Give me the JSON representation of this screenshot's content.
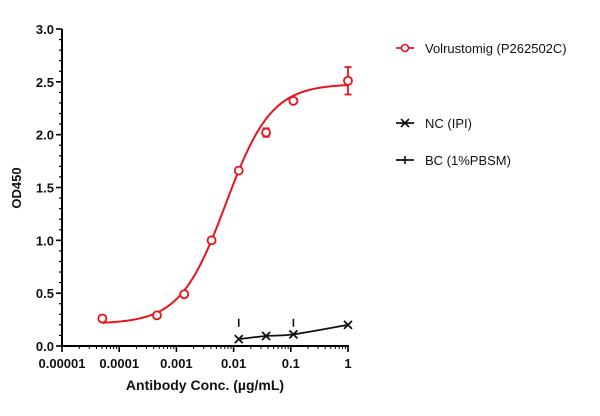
{
  "chart_data": {
    "type": "scatter",
    "xlabel": "Antibody Conc. (µg/mL)",
    "ylabel": "OD450",
    "xscale": "log",
    "xlim": [
      1e-05,
      1
    ],
    "ylim": [
      0,
      3.0
    ],
    "x_ticks": [
      "0.00001",
      "0.0001",
      "0.001",
      "0.01",
      "0.1",
      "1"
    ],
    "y_ticks": [
      "0.0",
      "0.5",
      "1.0",
      "1.5",
      "2.0",
      "2.5",
      "3.0"
    ],
    "grid": false,
    "legend_position": "right",
    "series": [
      {
        "name": "Volrustomig (P262502C)",
        "color": "#e8141b",
        "marker": "open-circle",
        "x": [
          5.08e-05,
          0.000457,
          0.00137,
          0.00412,
          0.0123,
          0.037,
          0.111,
          1
        ],
        "y": [
          0.26,
          0.29,
          0.49,
          1.0,
          1.66,
          2.02,
          2.32,
          2.51
        ],
        "error": [
          0.03,
          0.02,
          0.02,
          0.02,
          0.02,
          0.04,
          0.02,
          0.13
        ],
        "fit": {
          "model": "4PL",
          "bottom": 0.21,
          "top": 2.48,
          "ec50": 0.0073,
          "hill": 1.09
        }
      },
      {
        "name": "NC (IPI)",
        "color": "#111111",
        "marker": "x",
        "x": [
          0.0123,
          0.037,
          0.111,
          1
        ],
        "y": [
          0.065,
          0.095,
          0.11,
          0.2
        ]
      },
      {
        "name": "BC (1%PBSM)",
        "color": "#111111",
        "marker": "plus",
        "x": [
          0.0123,
          0.111
        ],
        "y": [
          0.22,
          0.22
        ]
      }
    ]
  }
}
